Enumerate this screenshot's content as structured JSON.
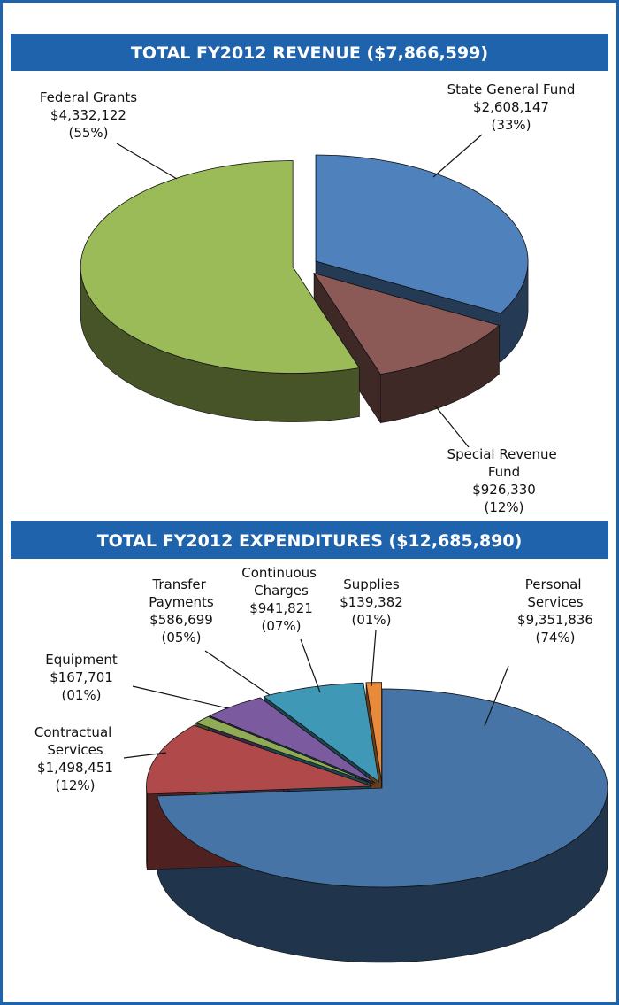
{
  "chart_data": [
    {
      "type": "pie3d",
      "title": "TOTAL FY2012 REVENUE ($7,866,599)",
      "categories": [
        "State General Fund",
        "Special Revenue Fund",
        "Federal Grants"
      ],
      "values": [
        2608147,
        926330,
        4332122
      ],
      "value_labels": [
        "$2,608,147",
        "$926,330",
        "$4,332,122"
      ],
      "percent_labels": [
        "(33%)",
        "(12%)",
        "(55%)"
      ],
      "colors": [
        "#4f81bd",
        "#8c5a56",
        "#9bbb59"
      ]
    },
    {
      "type": "pie3d",
      "title": "TOTAL FY2012 EXPENDITURES ($12,685,890)",
      "categories": [
        "Personal Services",
        "Contractual Services",
        "Equipment",
        "Transfer Payments",
        "Continuous Charges",
        "Supplies"
      ],
      "values": [
        9351836,
        1498451,
        167701,
        586699,
        941821,
        139382
      ],
      "value_labels": [
        "$9,351,836",
        "$1,498,451",
        "$167,701",
        "$586,699",
        "$941,821",
        "$139,382"
      ],
      "percent_labels": [
        "(74%)",
        "(12%)",
        "(01%)",
        "(05%)",
        "(07%)",
        "(01%)"
      ],
      "colors": [
        "#4674a6",
        "#b04a4a",
        "#8fab55",
        "#7b5aa0",
        "#3f98b5",
        "#e88a3a"
      ]
    }
  ]
}
